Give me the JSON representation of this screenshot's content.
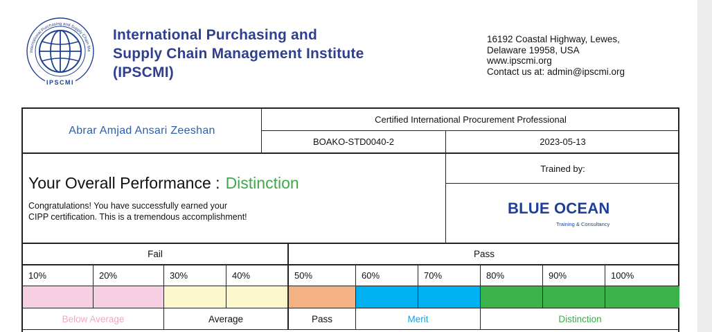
{
  "header": {
    "org_name_lines": [
      "International Purchasing and",
      "Supply Chain Management Institute",
      "(IPSCMI)"
    ],
    "logo_ring_text": "International Purchasing and Supply Chain Management Institute",
    "logo_abbrev": "IPSCMI",
    "address_lines": [
      "16192 Coastal Highway, Lewes,",
      "Delaware 19958, USA",
      "www.ipscmi.org",
      "Contact us at: admin@ipscmi.org"
    ]
  },
  "certificate": {
    "holder_name": "Abrar Amjad Ansari Zeeshan",
    "program": "Certified International Procurement Professional",
    "student_id": "BOAKO-STD0040-2",
    "date": "2023-05-13",
    "trained_by_label": "Trained by:",
    "trainer_logo_text": "BLUE OCEAN",
    "trainer_logo_tagline": "Training & Consultancy",
    "performance_label": "Your Overall Performance :",
    "performance_grade": "Distinction",
    "congrats_lines": [
      "Congratulations! You have successfully earned your",
      "CIPP certification. This is a tremendous accomplishment!"
    ]
  },
  "scale": {
    "groups": [
      "Fail",
      "Pass"
    ],
    "percentages": [
      "10%",
      "20%",
      "30%",
      "40%",
      "50%",
      "60%",
      "70%",
      "80%",
      "90%",
      "100%"
    ],
    "band_colors": [
      "#f7cfe2",
      "#f7cfe2",
      "#fdf8cc",
      "#fdf8cc",
      "#f4b183",
      "#00b0f0",
      "#00b0f0",
      "#3cb34a",
      "#3cb34a",
      "#3cb34a"
    ],
    "bands": [
      {
        "label": "Below Average",
        "color": "#f3a6c8"
      },
      {
        "label": "Average",
        "color": "#111111"
      },
      {
        "label": "Pass",
        "color": "#111111"
      },
      {
        "label": "Merit",
        "color": "#1aa0e0"
      },
      {
        "label": "Distinction",
        "color": "#3ea84a"
      }
    ]
  },
  "colors": {
    "org_blue": "#2f3f8f",
    "name_blue": "#2b5fa8",
    "distinction_green": "#3ea84a"
  }
}
